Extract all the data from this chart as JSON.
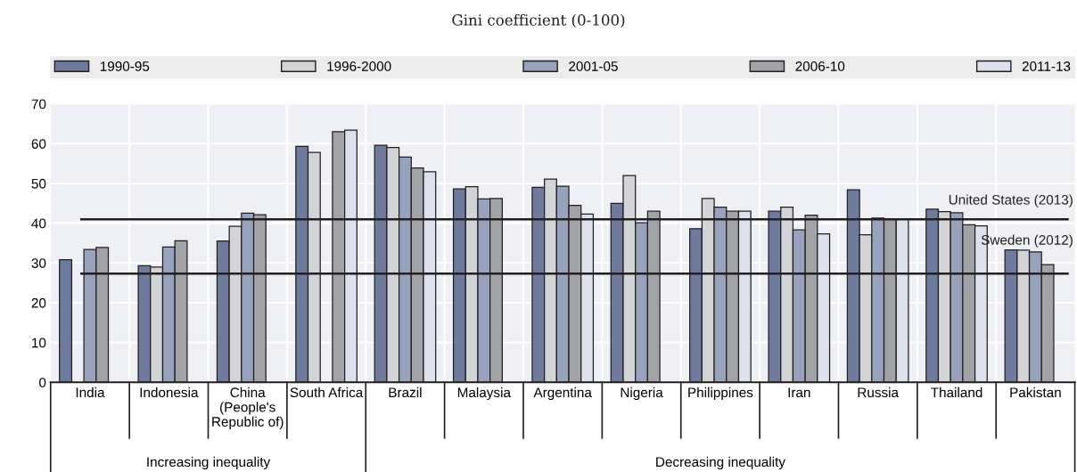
{
  "chart_data": {
    "type": "bar",
    "subtitle": "Gini coefficient (0-100)",
    "categories": [
      "India",
      "Indonesia",
      "China\n(People's\nRepublic of)",
      "South Africa",
      "Brazil",
      "Malaysia",
      "Argentina",
      "Nigeria",
      "Philippines",
      "Iran",
      "Russia",
      "Thailand",
      "Pakistan"
    ],
    "series": [
      {
        "name": "1990-95",
        "color": "#6e7b9c",
        "values": [
          30.8,
          29.3,
          35.5,
          59.3,
          59.6,
          48.6,
          49.0,
          45.0,
          38.6,
          43.0,
          48.4,
          43.5,
          33.3
        ]
      },
      {
        "name": "1996-2000",
        "color": "#d3d4d6",
        "values": [
          null,
          29.0,
          39.2,
          57.8,
          59.0,
          49.2,
          51.1,
          52.0,
          46.2,
          44.0,
          37.1,
          42.9,
          33.2
        ]
      },
      {
        "name": "2001-05",
        "color": "#97a2bc",
        "values": [
          33.4,
          34.0,
          42.5,
          null,
          56.6,
          46.1,
          49.3,
          40.1,
          44.0,
          38.3,
          41.3,
          42.6,
          32.8
        ]
      },
      {
        "name": "2006-10",
        "color": "#a2a3a6",
        "values": [
          33.9,
          35.6,
          42.1,
          63.0,
          53.9,
          46.2,
          44.5,
          43.0,
          43.0,
          42.0,
          41.0,
          39.6,
          29.6
        ]
      },
      {
        "name": "2011-13",
        "color": "#dde1ec",
        "values": [
          null,
          null,
          null,
          63.4,
          52.9,
          null,
          42.3,
          null,
          43.0,
          37.3,
          41.0,
          39.3,
          null
        ]
      }
    ],
    "ylim": [
      0,
      70
    ],
    "yticks": [
      0,
      10,
      20,
      30,
      40,
      50,
      60,
      70
    ],
    "grid": true,
    "legend": "top",
    "ref_lines": [
      {
        "axis": "y",
        "value": 41.0,
        "label": "United States (2013)",
        "color": "#231f20"
      },
      {
        "axis": "y",
        "value": 27.3,
        "label": "Sweden (2012)",
        "color": "#231f20"
      }
    ],
    "annotations": [
      "Increasing inequality",
      "Decreasing inequality"
    ]
  }
}
